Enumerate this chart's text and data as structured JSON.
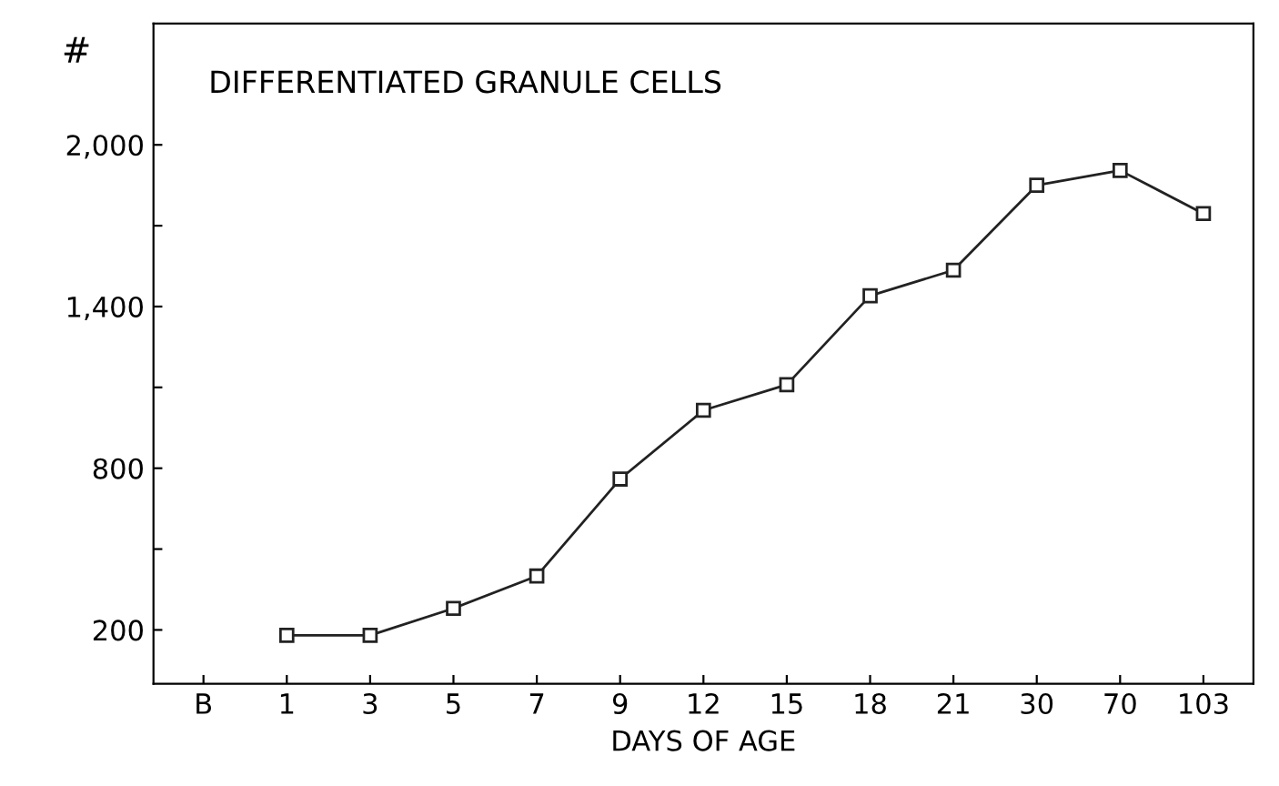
{
  "chart_data": {
    "type": "line",
    "title": "DIFFERENTIATED GRANULE CELLS",
    "xlabel": "DAYS OF AGE",
    "ylabel": "#",
    "categories": [
      "B",
      "1",
      "3",
      "5",
      "7",
      "9",
      "12",
      "15",
      "18",
      "21",
      "30",
      "70",
      "103"
    ],
    "series": [
      {
        "color": "#222222",
        "values": [
          null,
          180,
          180,
          280,
          400,
          760,
          1015,
          1110,
          1440,
          1535,
          1850,
          1905,
          1745
        ]
      }
    ],
    "ylim": [
      0,
      2450
    ],
    "yticks": [
      200,
      {
        "value": 500,
        "label": null
      },
      800,
      {
        "value": 1100,
        "label": null
      },
      {
        "value": 1400,
        "label": "1,400"
      },
      {
        "value": 1700,
        "label": null
      },
      {
        "value": 2000,
        "label": "2,000"
      }
    ],
    "marker": "square",
    "line_style": "solid",
    "grid": false,
    "legend": false
  }
}
